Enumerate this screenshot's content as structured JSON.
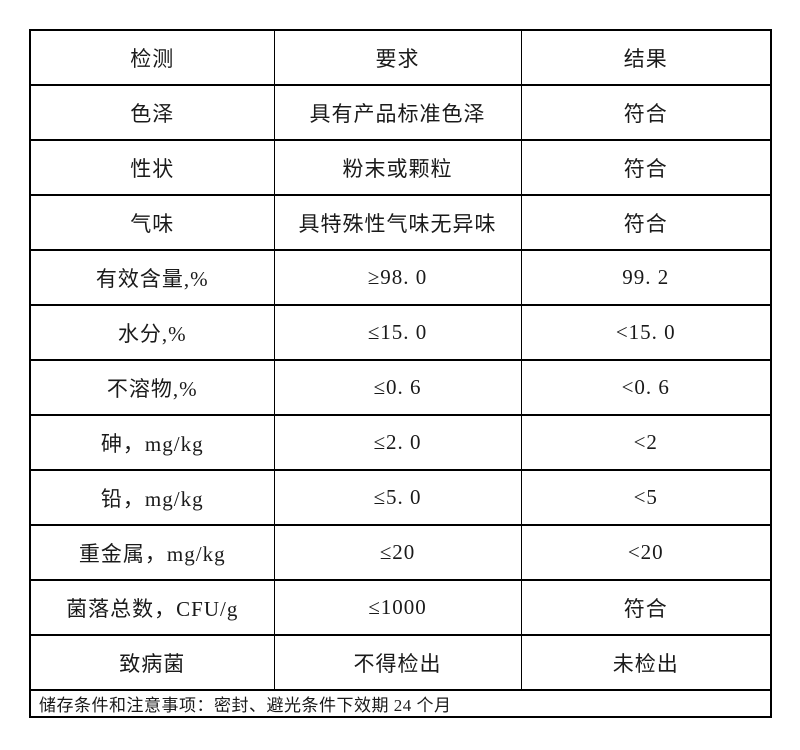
{
  "table": {
    "headers": [
      "检测",
      "要求",
      "结果"
    ],
    "rows": [
      [
        "色泽",
        "具有产品标准色泽",
        "符合"
      ],
      [
        "性状",
        "粉末或颗粒",
        "符合"
      ],
      [
        "气味",
        "具特殊性气味无异味",
        "符合"
      ],
      [
        "有效含量,%",
        "≥98. 0",
        "99. 2"
      ],
      [
        "水分,%",
        "≤15. 0",
        "<15. 0"
      ],
      [
        "不溶物,%",
        "≤0. 6",
        "<0. 6"
      ],
      [
        "砷，mg/kg",
        "≤2. 0",
        "<2"
      ],
      [
        "铅，mg/kg",
        "≤5. 0",
        "<5"
      ],
      [
        "重金属，mg/kg",
        "≤20",
        "<20"
      ],
      [
        "菌落总数，CFU/g",
        "≤1000",
        "符合"
      ],
      [
        "致病菌",
        "不得检出",
        "未检出"
      ]
    ],
    "footer": "储存条件和注意事项：密封、避光条件下效期 24 个月"
  },
  "colors": {
    "border": "#000000",
    "text": "#1a1a1a",
    "background": "#ffffff"
  }
}
